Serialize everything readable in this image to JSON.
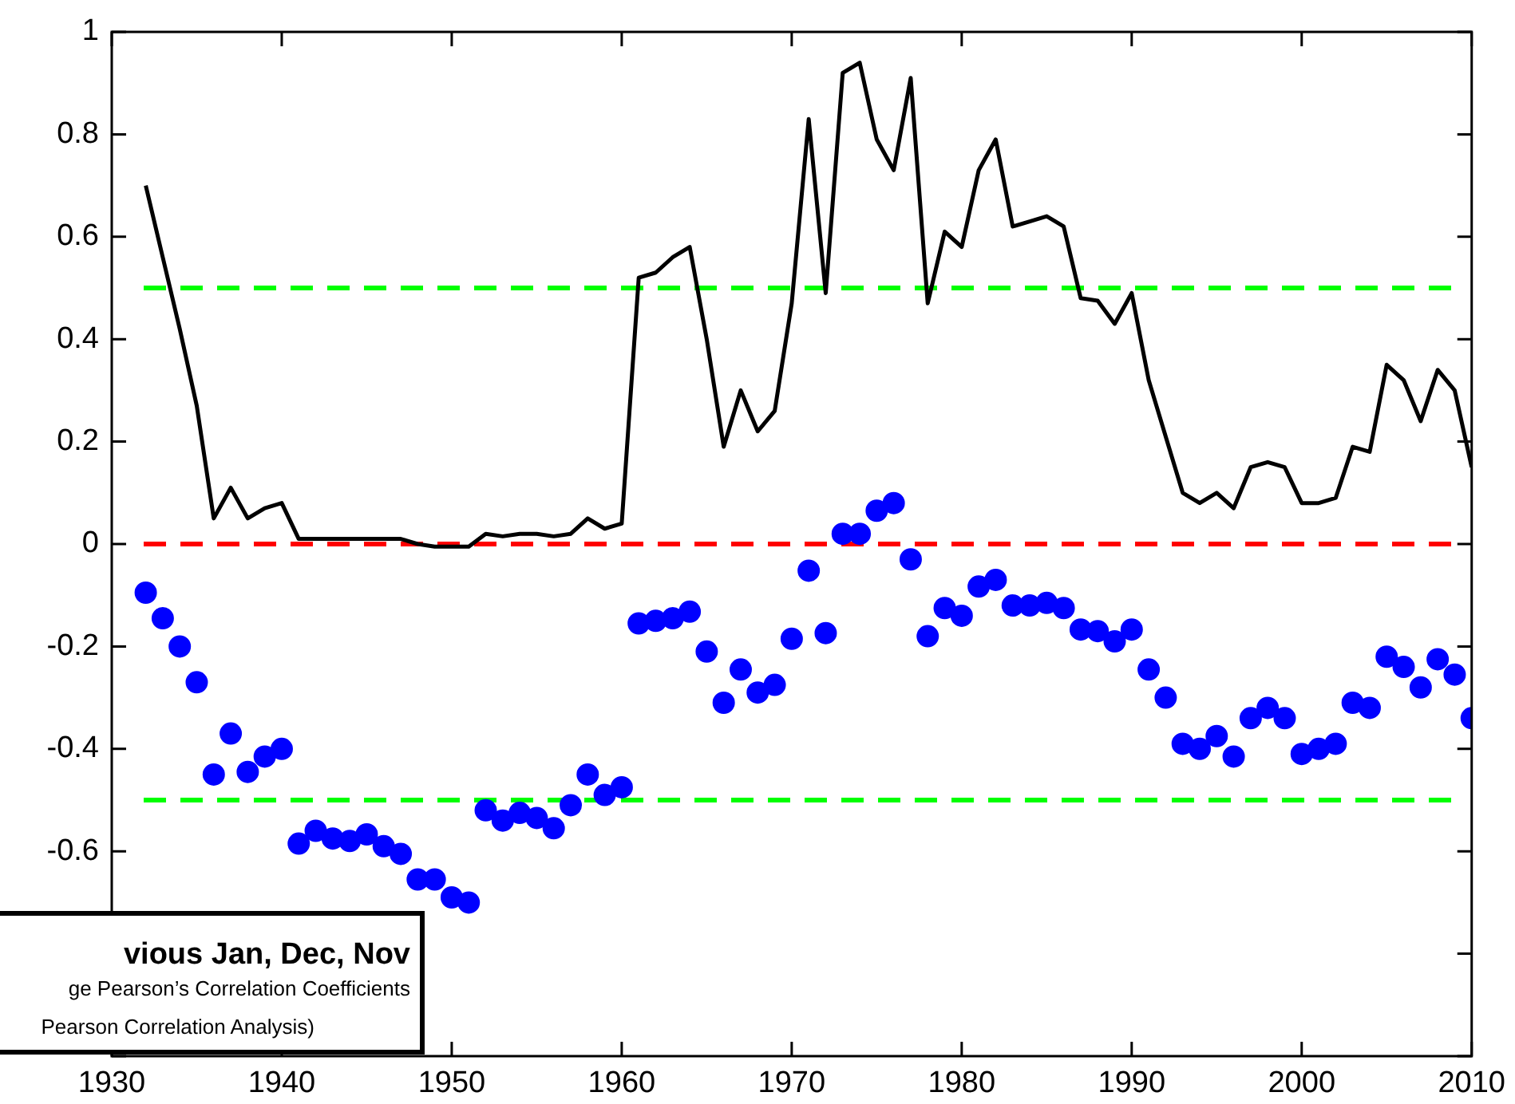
{
  "chart_data": {
    "type": "line",
    "x": [
      1932,
      1933,
      1934,
      1935,
      1936,
      1937,
      1938,
      1939,
      1940,
      1941,
      1942,
      1943,
      1944,
      1945,
      1946,
      1947,
      1948,
      1949,
      1950,
      1951,
      1952,
      1953,
      1954,
      1955,
      1956,
      1957,
      1958,
      1959,
      1960,
      1961,
      1962,
      1963,
      1964,
      1965,
      1966,
      1967,
      1968,
      1969,
      1970,
      1971,
      1972,
      1973,
      1974,
      1975,
      1976,
      1977,
      1978,
      1979,
      1980,
      1981,
      1982,
      1983,
      1984,
      1985,
      1986,
      1987,
      1988,
      1989,
      1990,
      1991,
      1992,
      1993,
      1994,
      1995,
      1996,
      1997,
      1998,
      1999,
      2000,
      2001,
      2002,
      2003,
      2004,
      2005,
      2006,
      2007,
      2008,
      2009,
      2010
    ],
    "series": [
      {
        "color": "#000000",
        "values": [
          0.7,
          0.56,
          0.42,
          0.27,
          0.05,
          0.11,
          0.05,
          0.07,
          0.08,
          0.01,
          0.01,
          0.01,
          0.01,
          0.01,
          0.01,
          0.01,
          0.0,
          -0.005,
          -0.005,
          -0.005,
          0.02,
          0.015,
          0.02,
          0.02,
          0.015,
          0.02,
          0.05,
          0.03,
          0.04,
          0.52,
          0.53,
          0.56,
          0.58,
          0.4,
          0.19,
          0.3,
          0.22,
          0.26,
          0.47,
          0.83,
          0.49,
          0.92,
          0.94,
          0.79,
          0.73,
          0.91,
          0.47,
          0.61,
          0.58,
          0.73,
          0.79,
          0.62,
          0.63,
          0.64,
          0.62,
          0.48,
          0.475,
          0.43,
          0.49,
          0.32,
          0.21,
          0.1,
          0.08,
          0.1,
          0.07,
          0.15,
          0.16,
          0.15,
          0.08,
          0.08,
          0.09,
          0.19,
          0.18,
          0.35,
          0.32,
          0.24,
          0.34,
          0.3,
          0.15
        ]
      },
      {
        "type": "scatter",
        "color": "#0000ff",
        "marker": "circle",
        "values": [
          -0.095,
          -0.145,
          -0.2,
          -0.27,
          -0.45,
          -0.37,
          -0.445,
          -0.415,
          -0.4,
          -0.585,
          -0.56,
          -0.575,
          -0.58,
          -0.567,
          -0.59,
          -0.605,
          -0.655,
          -0.655,
          -0.69,
          -0.7,
          -0.52,
          -0.54,
          -0.525,
          -0.535,
          -0.555,
          -0.51,
          -0.45,
          -0.49,
          -0.475,
          -0.155,
          -0.15,
          -0.145,
          -0.132,
          -0.21,
          -0.31,
          -0.245,
          -0.29,
          -0.275,
          -0.185,
          -0.052,
          -0.174,
          0.02,
          0.02,
          0.065,
          0.08,
          -0.03,
          -0.18,
          -0.125,
          -0.14,
          -0.083,
          -0.07,
          -0.12,
          -0.12,
          -0.115,
          -0.125,
          -0.167,
          -0.17,
          -0.19,
          -0.167,
          -0.245,
          -0.3,
          -0.39,
          -0.4,
          -0.375,
          -0.415,
          -0.34,
          -0.32,
          -0.34,
          -0.41,
          -0.4,
          -0.39,
          -0.31,
          -0.32,
          -0.22,
          -0.24,
          -0.28,
          -0.225,
          -0.255,
          -0.34
        ]
      }
    ],
    "xlim": [
      1930,
      2010
    ],
    "xticks": [
      1930,
      1940,
      1950,
      1960,
      1970,
      1980,
      1990,
      2000,
      2010
    ],
    "ylim": [
      -1,
      1
    ],
    "yticks": [
      {
        "value": -1,
        "label": null
      },
      {
        "value": -0.8,
        "label": null
      },
      -0.6,
      -0.4,
      -0.2,
      0,
      0.2,
      0.4,
      0.6,
      0.8,
      1
    ],
    "ref_lines": [
      {
        "axis": "y",
        "value": 0.5,
        "color": "#00ff00",
        "line_style": "dashed"
      },
      {
        "axis": "y",
        "value": 0,
        "color": "#ff0000",
        "line_style": "dashed"
      },
      {
        "axis": "y",
        "value": -0.5,
        "color": "#00ff00",
        "line_style": "dashed"
      }
    ],
    "annotations": [
      "vious Jan, Dec, Nov",
      "ge Pearson’s Correlation Coefficients",
      "Pearson Correlation Analysis)"
    ],
    "grid": false,
    "legend": false,
    "line_style": "solid"
  }
}
